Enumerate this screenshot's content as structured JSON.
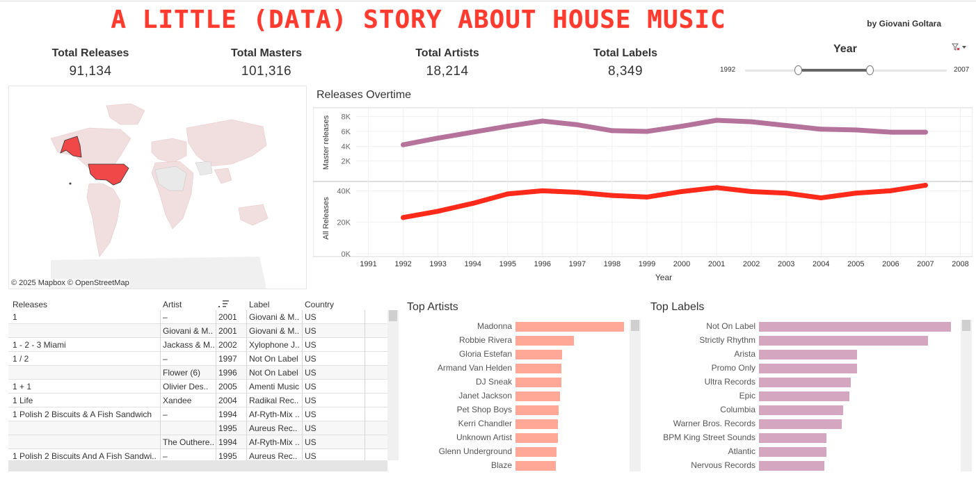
{
  "header": {
    "title": "A LITTLE (DATA) STORY ABOUT HOUSE MUSIC",
    "byline": "by Giovani Goltara"
  },
  "kpis": [
    {
      "label": "Total Releases",
      "value": "91,134"
    },
    {
      "label": "Total Masters",
      "value": "101,316"
    },
    {
      "label": "Total Artists",
      "value": "18,214"
    },
    {
      "label": "Total Labels",
      "value": "8,349"
    }
  ],
  "year_filter": {
    "title": "Year",
    "min_label": "1992",
    "max_label": "2007",
    "range_start_fraction": 0.27,
    "range_end_fraction": 0.62,
    "filter_icon": "clear-filter-icon",
    "menu_icon": "dropdown-caret-icon"
  },
  "map": {
    "attribution": "© 2025 Mapbox  © OpenStreetMap",
    "highlight_country": "United States",
    "highlight_color": "#f04848",
    "land_color": "#f1dede"
  },
  "chart_data": {
    "type": "line",
    "title": "Releases Overtime",
    "xlabel": "Year",
    "x": [
      1992,
      1993,
      1994,
      1995,
      1996,
      1997,
      1998,
      1999,
      2000,
      2001,
      2002,
      2003,
      2004,
      2005,
      2006,
      2007
    ],
    "x_ticks": [
      "1991",
      "1992",
      "1993",
      "1994",
      "1995",
      "1996",
      "1997",
      "1998",
      "1999",
      "2000",
      "2001",
      "2002",
      "2003",
      "2004",
      "2005",
      "2006",
      "2007",
      "2008"
    ],
    "series": [
      {
        "name": "Master releases",
        "color": "#b5739c",
        "ylabel": "Master releases",
        "y_ticks": [
          "8K",
          "6K",
          "4K",
          "2K"
        ],
        "ylim": [
          0,
          9000
        ],
        "values": [
          4200,
          5100,
          5900,
          6700,
          7400,
          6900,
          6100,
          6000,
          6700,
          7500,
          7300,
          6800,
          6300,
          6200,
          5900,
          5900
        ]
      },
      {
        "name": "All Releases",
        "color": "#ff2a1a",
        "ylabel": "All Releases",
        "y_ticks": [
          "40K",
          "20K",
          "0K"
        ],
        "ylim": [
          0,
          45000
        ],
        "values": [
          23000,
          27000,
          32000,
          38000,
          40000,
          39000,
          37000,
          36000,
          39500,
          42000,
          39500,
          38500,
          35500,
          38500,
          40000,
          43500
        ]
      }
    ],
    "grid": true
  },
  "releases_table": {
    "columns": [
      "Releases",
      "Artist",
      "",
      "Label",
      "Country"
    ],
    "sort_icon": "sort-descending-icon",
    "rows": [
      {
        "release": "1",
        "artist": "–",
        "year": "2001",
        "label": "Giovani & M..",
        "country": "US"
      },
      {
        "release": "",
        "artist": "Giovani & M..",
        "year": "2001",
        "label": "Giovani & M..",
        "country": "US"
      },
      {
        "release": "1 - 2 - 3 Miami",
        "artist": "Jackass & M..",
        "year": "2002",
        "label": "Xylophone J..",
        "country": "US"
      },
      {
        "release": "1 / 2",
        "artist": "–",
        "year": "1997",
        "label": "Not On Label",
        "country": "US"
      },
      {
        "release": "",
        "artist": "Flower (6)",
        "year": "1996",
        "label": "Not On Label",
        "country": "US"
      },
      {
        "release": "1 + 1",
        "artist": "Olivier Des..",
        "year": "2005",
        "label": "Amenti Music",
        "country": "US"
      },
      {
        "release": "1 Life",
        "artist": "Xandee",
        "year": "2004",
        "label": "Radikal Rec..",
        "country": "US"
      },
      {
        "release": "1 Polish 2 Biscuits & A Fish Sandwich",
        "artist": "–",
        "year": "1994",
        "label": "Af-Ryth-Mix ..",
        "country": "US"
      },
      {
        "release": "",
        "artist": "",
        "year": "1995",
        "label": "Aureus Rec..",
        "country": "US"
      },
      {
        "release": "",
        "artist": "The Outhere..",
        "year": "1994",
        "label": "Af-Ryth-Mix ..",
        "country": "US"
      },
      {
        "release": "1 Polish 2 Biscuits And A Fish Sandwi..",
        "artist": "–",
        "year": "1995",
        "label": "Aureus Rec..",
        "country": "US"
      }
    ]
  },
  "top_artists": {
    "title": "Top Artists",
    "color": "#ffa898",
    "max": 100,
    "items": [
      {
        "label": "Madonna",
        "value": 100
      },
      {
        "label": "Robbie Rivera",
        "value": 54
      },
      {
        "label": "Gloria Estefan",
        "value": 43
      },
      {
        "label": "Armand Van Helden",
        "value": 42
      },
      {
        "label": "DJ Sneak",
        "value": 42
      },
      {
        "label": "Janet Jackson",
        "value": 41
      },
      {
        "label": "Pet Shop Boys",
        "value": 40
      },
      {
        "label": "Kerri Chandler",
        "value": 39
      },
      {
        "label": "Unknown Artist",
        "value": 39
      },
      {
        "label": "Glenn Underground",
        "value": 38
      },
      {
        "label": "Blaze",
        "value": 37
      }
    ]
  },
  "top_labels": {
    "title": "Top Labels",
    "color": "#d4a6c0",
    "max": 100,
    "items": [
      {
        "label": "Not On Label",
        "value": 100
      },
      {
        "label": "Strictly Rhythm",
        "value": 88
      },
      {
        "label": "Arista",
        "value": 51
      },
      {
        "label": "Promo Only",
        "value": 51
      },
      {
        "label": "Ultra Records",
        "value": 48
      },
      {
        "label": "Epic",
        "value": 47
      },
      {
        "label": "Columbia",
        "value": 44
      },
      {
        "label": "Warner Bros. Records",
        "value": 43
      },
      {
        "label": "BPM King Street Sounds",
        "value": 35
      },
      {
        "label": "Atlantic",
        "value": 35
      },
      {
        "label": "Nervous Records",
        "value": 34
      }
    ]
  }
}
